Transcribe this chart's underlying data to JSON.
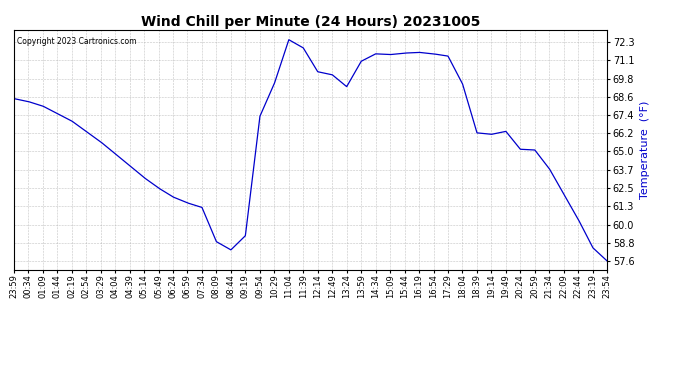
{
  "title": "Wind Chill per Minute (24 Hours) 20231005",
  "ylabel": "Temperature  (°F)",
  "copyright": "Copyright 2023 Cartronics.com",
  "line_color": "#0000cc",
  "ylabel_color": "#0000cc",
  "background_color": "#ffffff",
  "grid_color": "#aaaaaa",
  "yticks": [
    57.6,
    58.8,
    60.0,
    61.3,
    62.5,
    63.7,
    65.0,
    66.2,
    67.4,
    68.6,
    69.8,
    71.1,
    72.3
  ],
  "ylim": [
    57.0,
    73.1
  ],
  "xtick_labels": [
    "23:59",
    "00:34",
    "01:09",
    "01:44",
    "02:19",
    "02:54",
    "03:29",
    "04:04",
    "04:39",
    "05:14",
    "05:49",
    "06:24",
    "06:59",
    "07:34",
    "08:09",
    "08:44",
    "09:19",
    "09:54",
    "10:29",
    "11:04",
    "11:39",
    "12:14",
    "12:49",
    "13:24",
    "13:59",
    "14:34",
    "15:09",
    "15:44",
    "16:19",
    "16:54",
    "17:29",
    "18:04",
    "18:39",
    "19:14",
    "19:49",
    "20:24",
    "20:59",
    "21:34",
    "22:09",
    "22:44",
    "23:19",
    "23:54"
  ],
  "data_y": [
    68.5,
    68.3,
    68.0,
    67.5,
    67.0,
    66.3,
    65.6,
    64.8,
    64.0,
    63.2,
    62.5,
    61.9,
    61.5,
    61.2,
    58.9,
    58.35,
    59.3,
    67.3,
    69.5,
    72.45,
    71.9,
    70.3,
    70.1,
    69.3,
    71.0,
    71.5,
    71.45,
    71.55,
    71.6,
    71.5,
    71.35,
    69.5,
    66.2,
    66.1,
    66.3,
    65.1,
    65.05,
    63.8,
    62.1,
    60.4,
    58.5,
    57.6
  ]
}
